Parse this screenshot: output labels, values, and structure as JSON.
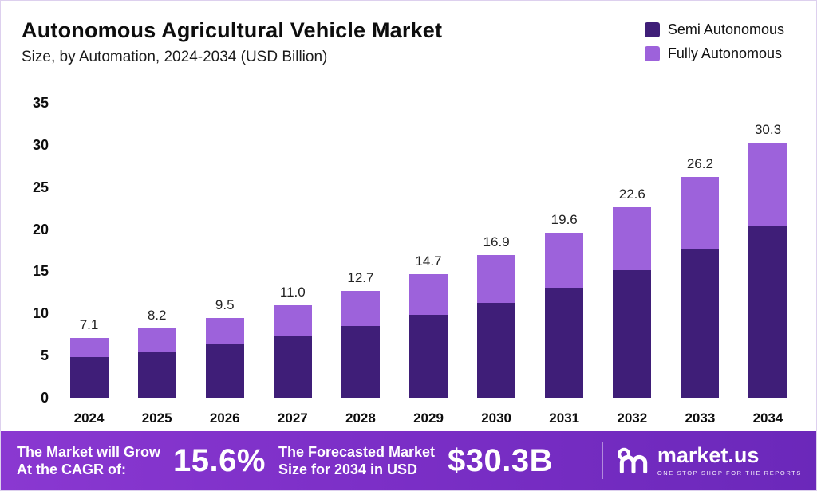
{
  "header": {
    "title": "Autonomous Agricultural Vehicle Market",
    "subtitle": "Size, by Automation, 2024-2034 (USD Billion)"
  },
  "colors": {
    "semi_autonomous": "#3F1E78",
    "fully_autonomous": "#9D62DB",
    "banner_gradient_start": "#8A38D1",
    "banner_gradient_end": "#6B28BA",
    "text": "#0D0D0D"
  },
  "chart_data": {
    "type": "bar",
    "stacked": true,
    "title": "Autonomous Agricultural Vehicle Market",
    "subtitle": "Size, by Automation, 2024-2034 (USD Billion)",
    "xlabel": "",
    "ylabel": "USD Billion",
    "ylim": [
      0,
      35
    ],
    "yticks": [
      35,
      30,
      25,
      20,
      15,
      10,
      5,
      0
    ],
    "grid": false,
    "legend_position": "top-right",
    "categories": [
      "2024",
      "2025",
      "2026",
      "2027",
      "2028",
      "2029",
      "2030",
      "2031",
      "2032",
      "2033",
      "2034"
    ],
    "series": [
      {
        "name": "Semi Autonomous",
        "color": "#3F1E78",
        "values": [
          4.8,
          5.5,
          6.4,
          7.4,
          8.5,
          9.8,
          11.3,
          13.1,
          15.1,
          17.6,
          20.3
        ]
      },
      {
        "name": "Fully Autonomous",
        "color": "#9D62DB",
        "values": [
          2.3,
          2.7,
          3.1,
          3.6,
          4.2,
          4.9,
          5.6,
          6.5,
          7.5,
          8.6,
          10.0
        ]
      }
    ],
    "totals": [
      7.1,
      8.2,
      9.5,
      11.0,
      12.7,
      14.7,
      16.9,
      19.6,
      22.6,
      26.2,
      30.3
    ],
    "total_labels": [
      "7.1",
      "8.2",
      "9.5",
      "11.0",
      "12.7",
      "14.7",
      "16.9",
      "19.6",
      "22.6",
      "26.2",
      "30.3"
    ]
  },
  "footer": {
    "cagr_line1": "The Market will Grow",
    "cagr_line2": "At the CAGR of:",
    "cagr_value": "15.6%",
    "forecast_line1": "The Forecasted Market",
    "forecast_line2": "Size for 2034 in USD",
    "forecast_value": "$30.3B",
    "brand_name": "market.us",
    "brand_tagline": "One Stop Shop For The Reports"
  }
}
